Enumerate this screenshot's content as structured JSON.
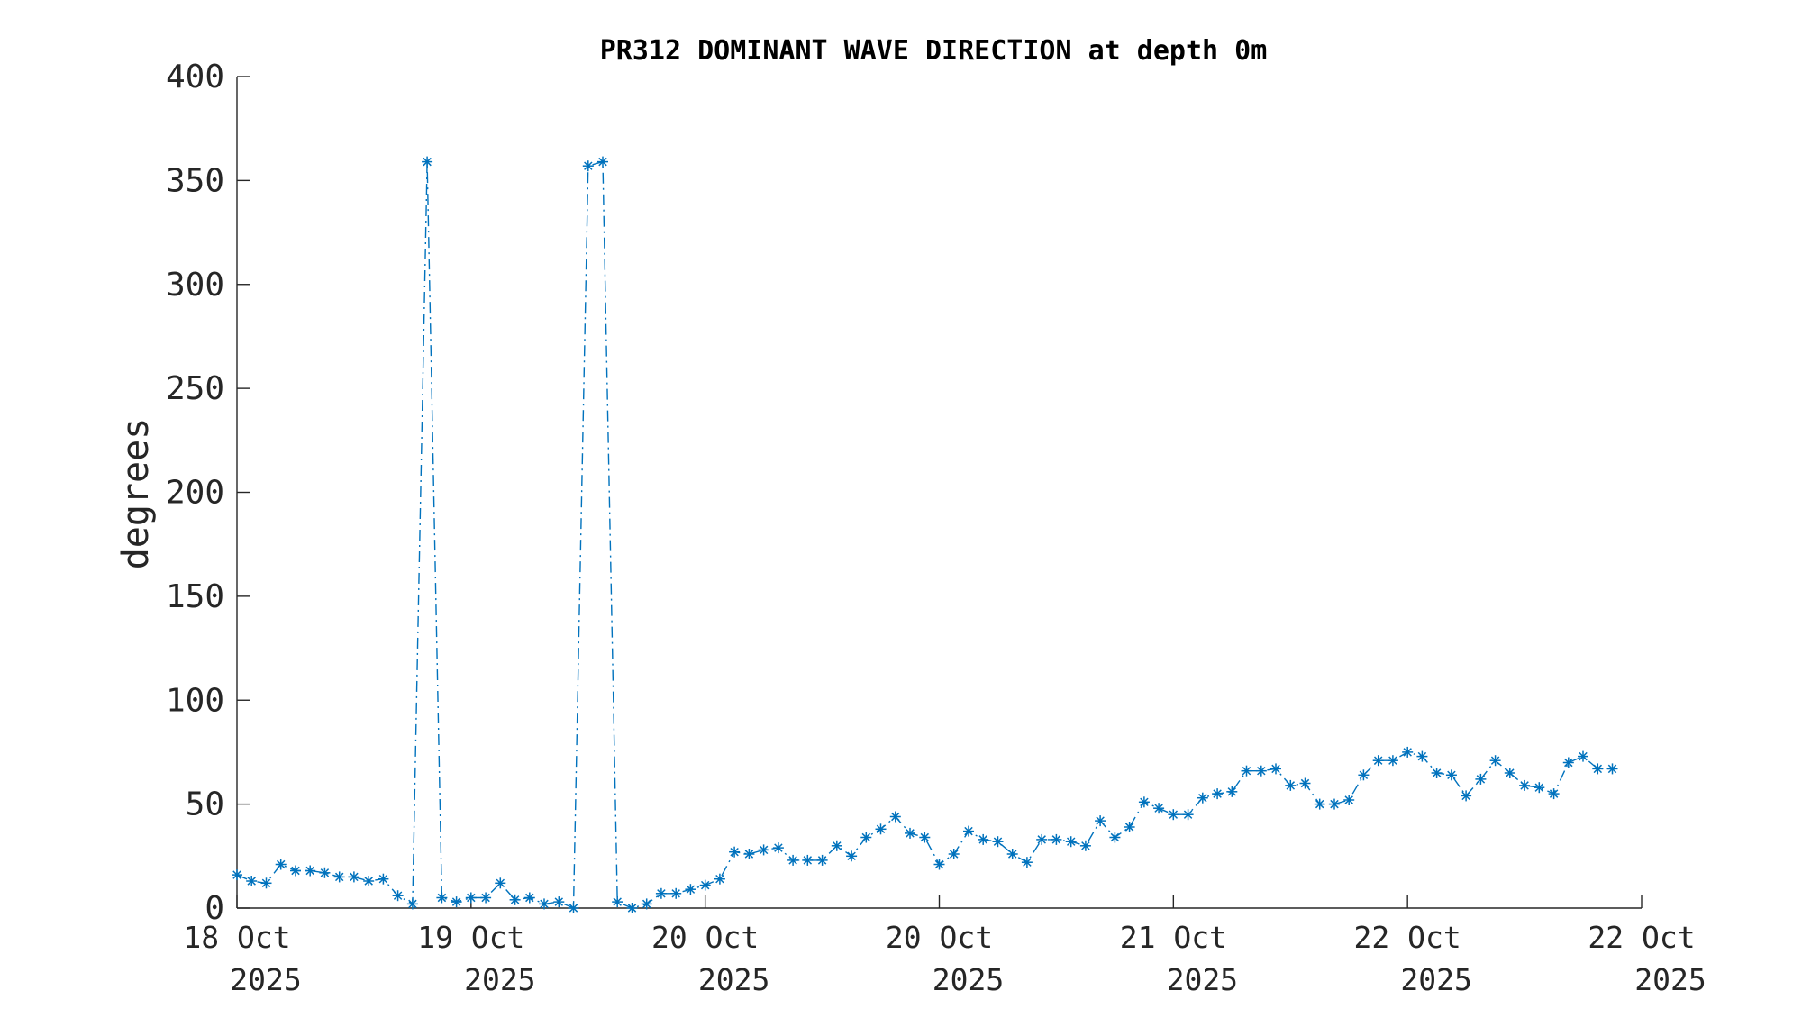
{
  "chart_data": {
    "type": "line",
    "title": "PR312 DOMINANT WAVE DIRECTION at depth 0m",
    "xlabel": "",
    "ylabel": "degrees",
    "ylim": [
      0,
      400
    ],
    "yticks": [
      "0",
      "50",
      "100",
      "150",
      "200",
      "250",
      "300",
      "350",
      "400"
    ],
    "xlim": [
      "2025-10-18 00:00",
      "2025-10-24 00:00"
    ],
    "xticks": [
      {
        "line1": "18 Oct",
        "line2": "2025"
      },
      {
        "line1": "19 Oct",
        "line2": "2025"
      },
      {
        "line1": "20 Oct",
        "line2": "2025"
      },
      {
        "line1": "20 Oct",
        "line2": "2025"
      },
      {
        "line1": "21 Oct",
        "line2": "2025"
      },
      {
        "line1": "22 Oct",
        "line2": "2025"
      },
      {
        "line1": "22 Oct",
        "line2": "2025"
      }
    ],
    "grid": false,
    "line_style": "dash-dot",
    "marker": "asterisk",
    "color": "#0072BD",
    "x_start": "2025-10-18 00:00",
    "x_step_hours": 1.5,
    "series": [
      {
        "values": [
          16,
          13,
          12,
          21,
          18,
          18,
          17,
          15,
          15,
          13,
          14,
          6,
          2,
          359,
          5,
          3,
          5,
          5,
          12,
          4,
          5,
          2,
          3,
          0,
          357,
          359,
          3,
          0,
          2,
          7,
          7,
          9,
          11,
          14,
          27,
          26,
          28,
          29,
          23,
          23,
          23,
          30,
          25,
          34,
          38,
          44,
          36,
          34,
          21,
          26,
          37,
          33,
          32,
          26,
          22,
          33,
          33,
          32,
          30,
          42,
          34,
          39,
          51,
          48,
          45,
          45,
          53,
          55,
          56,
          66,
          66,
          67,
          59,
          60,
          50,
          50,
          52,
          64,
          71,
          71,
          75,
          73,
          65,
          64,
          54,
          62,
          71,
          65,
          59,
          58,
          55,
          70,
          73,
          67,
          67
        ]
      }
    ]
  }
}
